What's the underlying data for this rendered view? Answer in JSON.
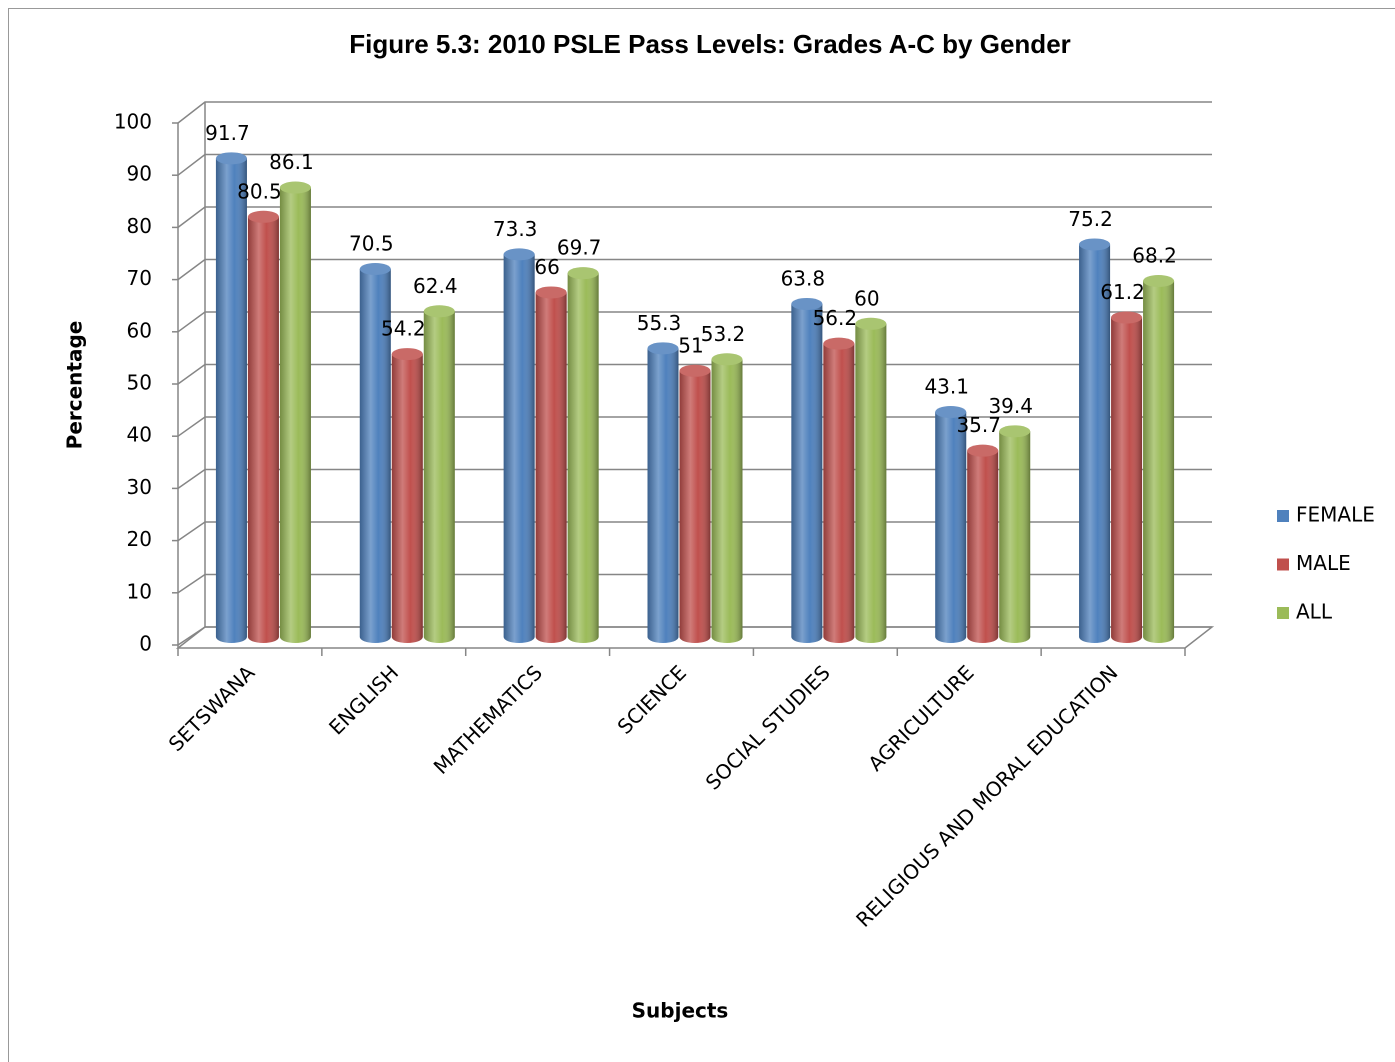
{
  "chart_data": {
    "type": "bar3d",
    "title": "Figure 5.3: 2010 PSLE Pass Levels: Grades A-C by Gender",
    "xlabel": "Subjects",
    "ylabel": "Percentage",
    "categories": [
      "SETSWANA",
      "ENGLISH",
      "MATHEMATICS",
      "SCIENCE",
      "SOCIAL STUDIES",
      "AGRICULTURE",
      "RELIGIOUS AND MORAL EDUCATION"
    ],
    "series": [
      {
        "name": "FEMALE",
        "color": "#4f81bd",
        "values": [
          91.7,
          70.5,
          73.3,
          55.3,
          63.8,
          43.1,
          75.2
        ]
      },
      {
        "name": "MALE",
        "color": "#c0504d",
        "values": [
          80.5,
          54.2,
          66,
          51,
          56.2,
          35.7,
          61.2
        ]
      },
      {
        "name": "ALL",
        "color": "#9bbb59",
        "values": [
          86.1,
          62.4,
          69.7,
          53.2,
          60,
          39.4,
          68.2
        ]
      }
    ],
    "ylim": [
      0,
      100
    ],
    "yticks": [
      0,
      10,
      20,
      30,
      40,
      50,
      60,
      70,
      80,
      90,
      100
    ],
    "grid": true,
    "legend": "right"
  }
}
